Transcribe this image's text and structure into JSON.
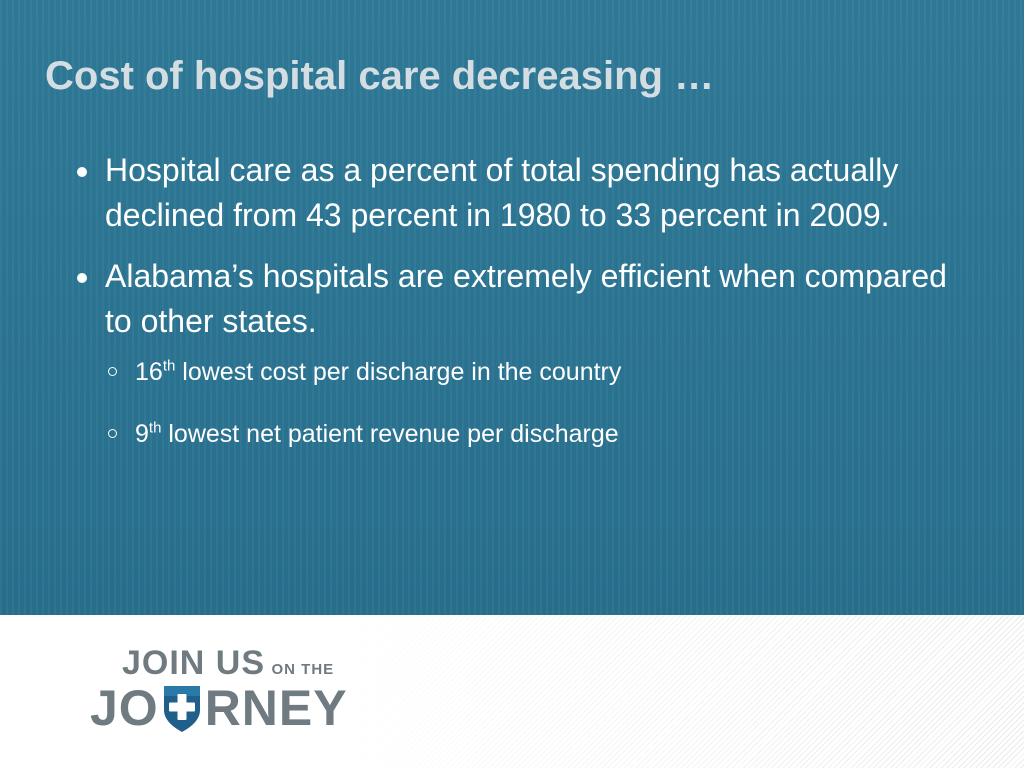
{
  "slide": {
    "title": "Cost of hospital care decreasing …",
    "bullets": [
      {
        "text": "Hospital care as a percent of total spending has actually declined from 43 percent in 1980 to 33 percent in 2009."
      },
      {
        "text": "Alabama’s hospitals are extremely efficient when compared to other states.",
        "sub_bullets": [
          {
            "ordinal": "16",
            "suffix": "th",
            "text": " lowest cost per discharge in the country"
          },
          {
            "ordinal": "9",
            "suffix": "th",
            "text": " lowest net patient revenue per discharge"
          }
        ]
      }
    ]
  },
  "logo": {
    "line1_main": "JOIN US",
    "line1_small": "ON THE",
    "line2_left": "JO",
    "line2_right": "RNEY",
    "shield_icon": "shield-cross-icon"
  },
  "colors": {
    "background": "#2a7391",
    "title": "#d4dde2",
    "body_text": "#ffffff",
    "logo_gray": "#6f7a81",
    "shield_blue": "#1f5f8a"
  }
}
